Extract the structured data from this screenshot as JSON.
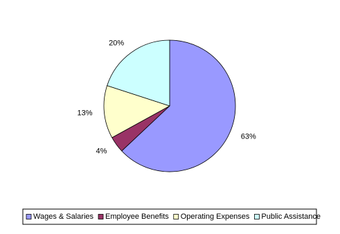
{
  "chart_data": {
    "type": "pie",
    "categories": [
      "Wages & Salaries",
      "Employee Benefits",
      "Operating Expenses",
      "Public Assistance"
    ],
    "values": [
      63,
      4,
      13,
      20
    ],
    "value_labels": [
      "63%",
      "4%",
      "13%",
      "20%"
    ],
    "colors": [
      "#9999ff",
      "#993366",
      "#ffffcc",
      "#ccffff"
    ],
    "legend": "bottom"
  }
}
